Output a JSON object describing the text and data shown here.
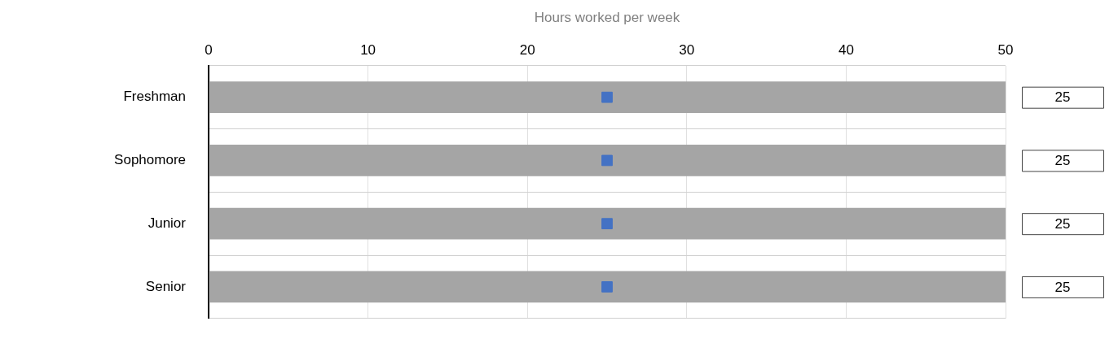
{
  "chart_data": {
    "type": "bar",
    "orientation": "horizontal",
    "xlabel": "Hours worked per week",
    "categories": [
      "Freshman",
      "Sophomore",
      "Junior",
      "Senior"
    ],
    "series": [
      {
        "color": "#a5a5a5",
        "values": [
          50,
          50,
          50,
          50
        ]
      },
      {
        "type": "scatter",
        "color": "#4472c4",
        "values": [
          25,
          25,
          25,
          25
        ],
        "value_labels": [
          "25",
          "25",
          "25",
          "25"
        ]
      }
    ],
    "xlim": [
      0,
      50
    ],
    "xticks": [
      0,
      10,
      20,
      30,
      40,
      50
    ],
    "grid": true,
    "legend": false,
    "marker": "square"
  }
}
